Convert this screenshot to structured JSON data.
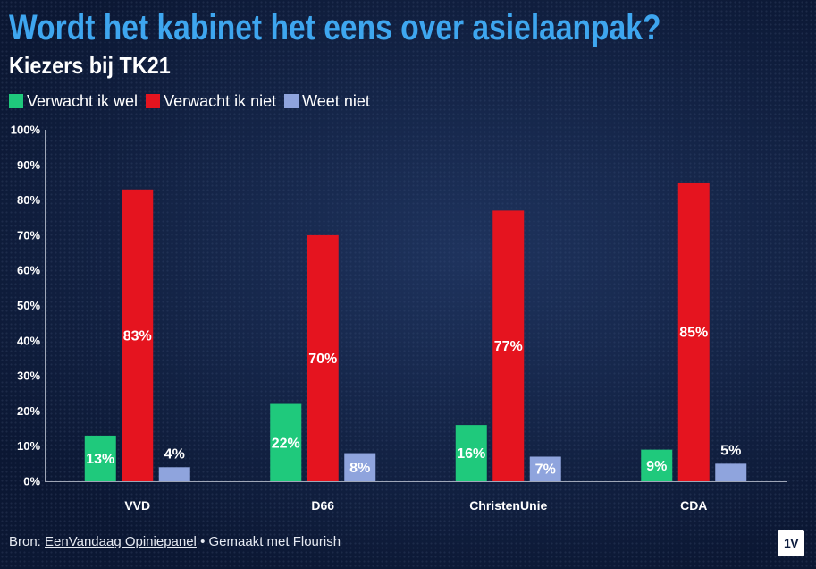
{
  "chart_data": {
    "type": "bar",
    "title": "Wordt het kabinet het eens over asielaanpak?",
    "subtitle": "Kiezers bij TK21",
    "categories": [
      "VVD",
      "D66",
      "ChristenUnie",
      "CDA"
    ],
    "series": [
      {
        "name": "Verwacht ik wel",
        "color": "#1fc97c",
        "values": [
          13,
          22,
          16,
          9
        ]
      },
      {
        "name": "Verwacht ik niet",
        "color": "#e5141f",
        "values": [
          83,
          70,
          77,
          85
        ]
      },
      {
        "name": "Weet niet",
        "color": "#8fa4dd",
        "values": [
          4,
          8,
          7,
          5
        ]
      }
    ],
    "unit": "%",
    "ylim": [
      0,
      100
    ],
    "yticks": [
      0,
      10,
      20,
      30,
      40,
      50,
      60,
      70,
      80,
      90,
      100
    ],
    "grid": false,
    "legend": "top-left",
    "data_labels": true
  },
  "footer": {
    "source_prefix": "Bron:",
    "source_link": "EenVandaag Opiniepanel",
    "separator": "•",
    "credit": "Gemaakt met Flourish"
  },
  "logo": {
    "text": "1V"
  },
  "colors": {
    "title": "#3ea6ef",
    "background": "#0b1733",
    "text": "#ffffff"
  }
}
